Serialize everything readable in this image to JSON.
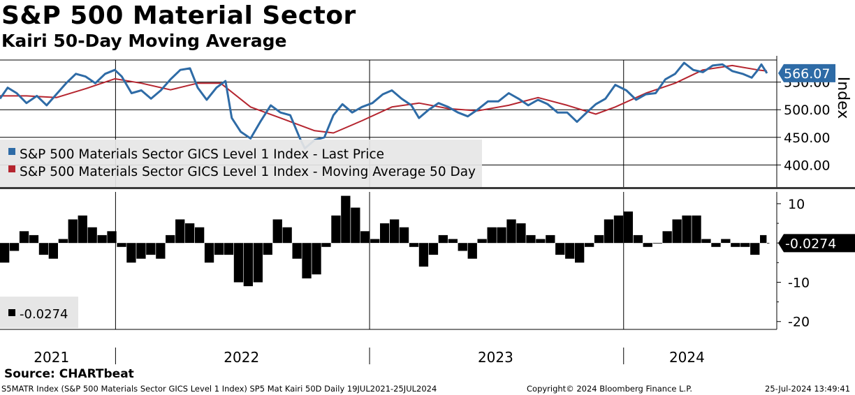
{
  "header": {
    "title": "S&P 500 Material Sector",
    "subtitle": "Kairi 50-Day Moving Average"
  },
  "source": "Source: CHARTbeat",
  "footer": {
    "left": "S5MATR Index (S&P 500 Materials Sector GICS Level 1 Index) SP5 Mat Kairi 50D  Daily 19JUL2021-25JUL2024",
    "center": "Copyright© 2024 Bloomberg Finance L.P.",
    "right": "25-Jul-2024 13:49:41"
  },
  "colors": {
    "price": "#2e6ba6",
    "ma": "#b5252f",
    "kairi": "#000000",
    "tag_price": "#2e6ba6",
    "tag_kairi": "#000000"
  },
  "chart_data": [
    {
      "type": "line",
      "panel": "upper",
      "y_axis_label": "Index",
      "yticks": [
        400,
        450,
        500,
        550
      ],
      "ytick_labels": [
        "400.00",
        "450.00",
        "500.00",
        "550.00"
      ],
      "ylim": [
        360,
        590
      ],
      "last_value_label": "566.07",
      "legend": {
        "placement": "left",
        "entries": [
          "S&P 500 Materials Sector GICS Level 1 Index - Last Price",
          "S&P 500 Materials Sector GICS Level 1 Index - Moving Average 50 Day"
        ]
      },
      "x_range": [
        "2021-07-19",
        "2024-07-25"
      ],
      "series": [
        {
          "name": "S&P 500 Materials Sector GICS Level 1 Index - Last Price",
          "points": [
            [
              "2021-07-19",
              520
            ],
            [
              "2021-07-30",
              540
            ],
            [
              "2021-08-12",
              530
            ],
            [
              "2021-08-26",
              512
            ],
            [
              "2021-09-10",
              525
            ],
            [
              "2021-09-24",
              508
            ],
            [
              "2021-10-08",
              528
            ],
            [
              "2021-10-22",
              548
            ],
            [
              "2021-11-05",
              565
            ],
            [
              "2021-11-19",
              560
            ],
            [
              "2021-12-03",
              548
            ],
            [
              "2021-12-17",
              565
            ],
            [
              "2021-12-31",
              572
            ],
            [
              "2022-01-10",
              560
            ],
            [
              "2022-01-24",
              530
            ],
            [
              "2022-02-07",
              535
            ],
            [
              "2022-02-21",
              520
            ],
            [
              "2022-03-07",
              535
            ],
            [
              "2022-03-21",
              555
            ],
            [
              "2022-04-04",
              572
            ],
            [
              "2022-04-18",
              575
            ],
            [
              "2022-04-29",
              540
            ],
            [
              "2022-05-12",
              518
            ],
            [
              "2022-05-26",
              540
            ],
            [
              "2022-06-08",
              552
            ],
            [
              "2022-06-17",
              485
            ],
            [
              "2022-06-30",
              460
            ],
            [
              "2022-07-14",
              448
            ],
            [
              "2022-07-28",
              478
            ],
            [
              "2022-08-12",
              508
            ],
            [
              "2022-08-26",
              495
            ],
            [
              "2022-09-09",
              490
            ],
            [
              "2022-09-23",
              448
            ],
            [
              "2022-09-30",
              430
            ],
            [
              "2022-10-14",
              445
            ],
            [
              "2022-10-28",
              450
            ],
            [
              "2022-11-10",
              490
            ],
            [
              "2022-11-23",
              510
            ],
            [
              "2022-12-07",
              495
            ],
            [
              "2022-12-21",
              505
            ],
            [
              "2023-01-05",
              512
            ],
            [
              "2023-01-20",
              528
            ],
            [
              "2023-02-02",
              535
            ],
            [
              "2023-02-16",
              520
            ],
            [
              "2023-03-02",
              508
            ],
            [
              "2023-03-13",
              485
            ],
            [
              "2023-03-27",
              500
            ],
            [
              "2023-04-10",
              512
            ],
            [
              "2023-04-24",
              505
            ],
            [
              "2023-05-08",
              495
            ],
            [
              "2023-05-22",
              488
            ],
            [
              "2023-06-05",
              500
            ],
            [
              "2023-06-20",
              515
            ],
            [
              "2023-07-05",
              515
            ],
            [
              "2023-07-20",
              530
            ],
            [
              "2023-08-03",
              520
            ],
            [
              "2023-08-17",
              508
            ],
            [
              "2023-08-31",
              518
            ],
            [
              "2023-09-14",
              510
            ],
            [
              "2023-09-28",
              495
            ],
            [
              "2023-10-12",
              495
            ],
            [
              "2023-10-26",
              478
            ],
            [
              "2023-11-09",
              495
            ],
            [
              "2023-11-22",
              510
            ],
            [
              "2023-12-06",
              520
            ],
            [
              "2023-12-20",
              545
            ],
            [
              "2024-01-05",
              535
            ],
            [
              "2024-01-19",
              518
            ],
            [
              "2024-02-02",
              528
            ],
            [
              "2024-02-16",
              530
            ],
            [
              "2024-03-01",
              555
            ],
            [
              "2024-03-15",
              565
            ],
            [
              "2024-03-28",
              585
            ],
            [
              "2024-04-10",
              572
            ],
            [
              "2024-04-24",
              568
            ],
            [
              "2024-05-08",
              580
            ],
            [
              "2024-05-22",
              582
            ],
            [
              "2024-06-05",
              570
            ],
            [
              "2024-06-20",
              565
            ],
            [
              "2024-07-03",
              558
            ],
            [
              "2024-07-12",
              572
            ],
            [
              "2024-07-17",
              582
            ],
            [
              "2024-07-25",
              566.07
            ]
          ]
        },
        {
          "name": "S&P 500 Materials Sector GICS Level 1 Index - Moving Average 50 Day",
          "points": [
            [
              "2021-07-19",
              525
            ],
            [
              "2021-08-26",
              525
            ],
            [
              "2021-10-08",
              522
            ],
            [
              "2021-11-19",
              538
            ],
            [
              "2021-12-31",
              556
            ],
            [
              "2022-02-07",
              548
            ],
            [
              "2022-03-21",
              536
            ],
            [
              "2022-04-29",
              548
            ],
            [
              "2022-06-01",
              548
            ],
            [
              "2022-07-14",
              505
            ],
            [
              "2022-08-26",
              485
            ],
            [
              "2022-10-14",
              462
            ],
            [
              "2022-11-10",
              458
            ],
            [
              "2022-12-21",
              480
            ],
            [
              "2023-02-02",
              505
            ],
            [
              "2023-03-13",
              512
            ],
            [
              "2023-04-24",
              502
            ],
            [
              "2023-06-05",
              498
            ],
            [
              "2023-07-20",
              508
            ],
            [
              "2023-08-31",
              522
            ],
            [
              "2023-10-12",
              508
            ],
            [
              "2023-11-22",
              492
            ],
            [
              "2023-12-20",
              505
            ],
            [
              "2024-02-02",
              530
            ],
            [
              "2024-03-15",
              548
            ],
            [
              "2024-04-24",
              572
            ],
            [
              "2024-06-05",
              580
            ],
            [
              "2024-07-12",
              572
            ],
            [
              "2024-07-25",
              570
            ]
          ]
        }
      ]
    },
    {
      "type": "bar",
      "panel": "lower",
      "series_name": "-0.0274",
      "yticks": [
        10,
        0,
        -10,
        -20
      ],
      "ytick_labels": [
        "10",
        "",
        "-10",
        "-20"
      ],
      "ylim": [
        -22,
        13
      ],
      "last_value_label": "-0.0274",
      "legend": {
        "placement": "bottom-left",
        "entries": [
          "-0.0274"
        ]
      },
      "points": [
        [
          "2021-07-19",
          -5
        ],
        [
          "2021-08-02",
          -2
        ],
        [
          "2021-08-16",
          3
        ],
        [
          "2021-08-30",
          2
        ],
        [
          "2021-09-13",
          -3
        ],
        [
          "2021-09-27",
          -4
        ],
        [
          "2021-10-11",
          1
        ],
        [
          "2021-10-25",
          6
        ],
        [
          "2021-11-08",
          7
        ],
        [
          "2021-11-22",
          4
        ],
        [
          "2021-12-06",
          2
        ],
        [
          "2021-12-20",
          3
        ],
        [
          "2022-01-03",
          -1
        ],
        [
          "2022-01-17",
          -5
        ],
        [
          "2022-01-31",
          -4
        ],
        [
          "2022-02-14",
          -3
        ],
        [
          "2022-02-28",
          -4
        ],
        [
          "2022-03-14",
          2
        ],
        [
          "2022-03-28",
          6
        ],
        [
          "2022-04-11",
          5
        ],
        [
          "2022-04-25",
          4
        ],
        [
          "2022-05-09",
          -5
        ],
        [
          "2022-05-23",
          -3
        ],
        [
          "2022-06-06",
          -3
        ],
        [
          "2022-06-20",
          -10
        ],
        [
          "2022-07-04",
          -11
        ],
        [
          "2022-07-18",
          -10
        ],
        [
          "2022-08-01",
          -3
        ],
        [
          "2022-08-15",
          6
        ],
        [
          "2022-08-29",
          4
        ],
        [
          "2022-09-12",
          -4
        ],
        [
          "2022-09-26",
          -9
        ],
        [
          "2022-10-10",
          -8
        ],
        [
          "2022-10-24",
          -1
        ],
        [
          "2022-11-07",
          7
        ],
        [
          "2022-11-21",
          12
        ],
        [
          "2022-12-05",
          9
        ],
        [
          "2022-12-19",
          3
        ],
        [
          "2023-01-02",
          1
        ],
        [
          "2023-01-16",
          5
        ],
        [
          "2023-01-30",
          6
        ],
        [
          "2023-02-13",
          4
        ],
        [
          "2023-02-27",
          -1
        ],
        [
          "2023-03-13",
          -6
        ],
        [
          "2023-03-27",
          -3
        ],
        [
          "2023-04-10",
          2
        ],
        [
          "2023-04-24",
          1
        ],
        [
          "2023-05-08",
          -2
        ],
        [
          "2023-05-22",
          -4
        ],
        [
          "2023-06-05",
          1
        ],
        [
          "2023-06-19",
          4
        ],
        [
          "2023-07-03",
          4
        ],
        [
          "2023-07-17",
          6
        ],
        [
          "2023-07-31",
          5
        ],
        [
          "2023-08-14",
          2
        ],
        [
          "2023-08-28",
          1
        ],
        [
          "2023-09-11",
          2
        ],
        [
          "2023-09-25",
          -3
        ],
        [
          "2023-10-09",
          -4
        ],
        [
          "2023-10-23",
          -5
        ],
        [
          "2023-11-06",
          -1
        ],
        [
          "2023-11-20",
          2
        ],
        [
          "2023-12-04",
          6
        ],
        [
          "2023-12-18",
          7
        ],
        [
          "2024-01-01",
          8
        ],
        [
          "2024-01-15",
          2
        ],
        [
          "2024-01-29",
          -1
        ],
        [
          "2024-02-12",
          0
        ],
        [
          "2024-02-26",
          3
        ],
        [
          "2024-03-11",
          6
        ],
        [
          "2024-03-25",
          7
        ],
        [
          "2024-04-08",
          7
        ],
        [
          "2024-04-22",
          1
        ],
        [
          "2024-05-06",
          -1
        ],
        [
          "2024-05-20",
          1
        ],
        [
          "2024-06-03",
          -1
        ],
        [
          "2024-06-17",
          -1
        ],
        [
          "2024-07-01",
          -3
        ],
        [
          "2024-07-15",
          2
        ],
        [
          "2024-07-25",
          -0.0274
        ]
      ]
    }
  ],
  "x_axis": {
    "year_labels": [
      {
        "label": "2021",
        "date": "2021-10-01"
      },
      {
        "label": "2022",
        "date": "2022-07-01"
      },
      {
        "label": "2023",
        "date": "2023-07-01"
      },
      {
        "label": "2024",
        "date": "2024-04-01"
      }
    ],
    "year_boundaries": [
      "2022-01-01",
      "2023-01-01",
      "2024-01-01"
    ]
  }
}
